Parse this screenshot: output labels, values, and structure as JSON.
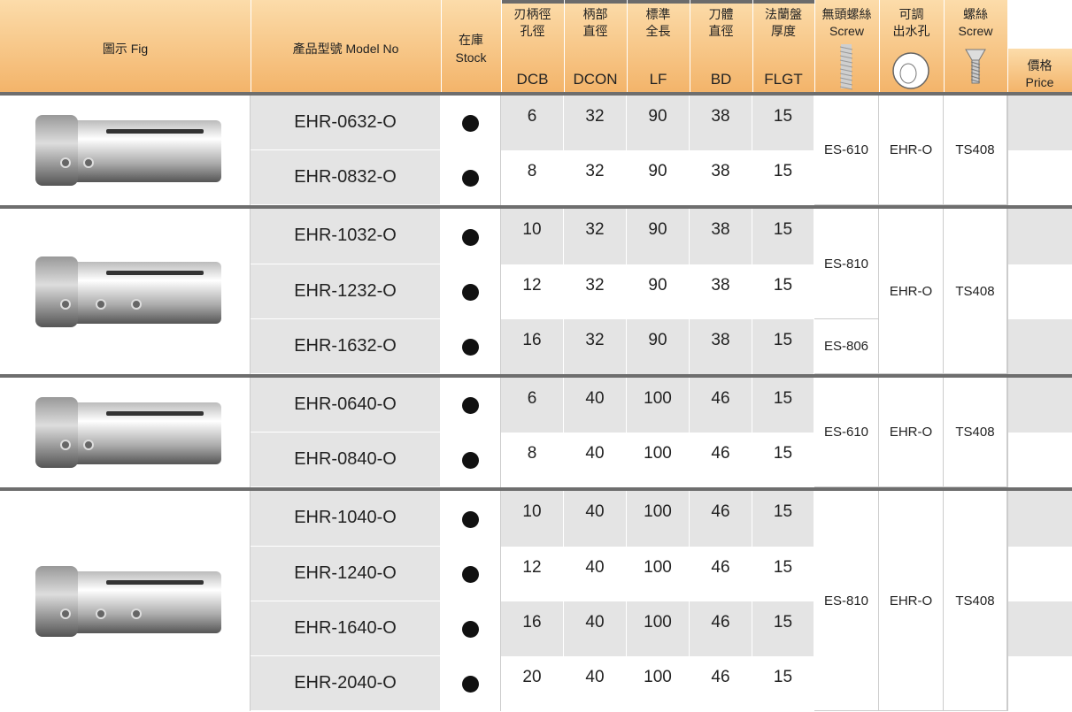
{
  "header": {
    "columns": [
      {
        "lines": [
          "圖示 Fig"
        ]
      },
      {
        "lines": [
          "產品型號 Model No"
        ]
      },
      {
        "lines": [
          "在庫",
          "Stock"
        ]
      },
      {
        "lines": [
          "刃柄徑",
          "孔徑"
        ],
        "code": "DCB"
      },
      {
        "lines": [
          "柄部",
          "直徑"
        ],
        "code": "DCON"
      },
      {
        "lines": [
          "標準",
          "全長"
        ],
        "code": "LF"
      },
      {
        "lines": [
          "刀體",
          "直徑"
        ],
        "code": "BD"
      },
      {
        "lines": [
          "法蘭盤",
          "厚度"
        ],
        "code": "FLGT"
      },
      {
        "lines": [
          "無頭螺絲",
          "Screw"
        ]
      },
      {
        "lines": [
          "可調",
          "出水孔"
        ]
      },
      {
        "lines": [
          "螺絲",
          "Screw"
        ]
      },
      {
        "lines": [
          "價格",
          "Price"
        ]
      }
    ]
  },
  "groups": [
    {
      "rows": [
        {
          "model": "EHR-0632-O",
          "dcb": 6,
          "dcon": 32,
          "lf": 90,
          "bd": 38,
          "flgt": 15,
          "set_screw": "ES-610",
          "nozzle": "EHR-O",
          "screw": "TS408"
        },
        {
          "model": "EHR-0832-O",
          "dcb": 8,
          "dcon": 32,
          "lf": 90,
          "bd": 38,
          "flgt": 15
        }
      ]
    },
    {
      "rows": [
        {
          "model": "EHR-1032-O",
          "dcb": 10,
          "dcon": 32,
          "lf": 90,
          "bd": 38,
          "flgt": 15,
          "set_screw": "ES-810",
          "nozzle": "EHR-O",
          "screw": "TS408"
        },
        {
          "model": "EHR-1232-O",
          "dcb": 12,
          "dcon": 32,
          "lf": 90,
          "bd": 38,
          "flgt": 15
        },
        {
          "model": "EHR-1632-O",
          "dcb": 16,
          "dcon": 32,
          "lf": 90,
          "bd": 38,
          "flgt": 15,
          "set_screw": "ES-806"
        }
      ]
    },
    {
      "rows": [
        {
          "model": "EHR-0640-O",
          "dcb": 6,
          "dcon": 40,
          "lf": 100,
          "bd": 46,
          "flgt": 15,
          "set_screw": "ES-610",
          "nozzle": "EHR-O",
          "screw": "TS408"
        },
        {
          "model": "EHR-0840-O",
          "dcb": 8,
          "dcon": 40,
          "lf": 100,
          "bd": 46,
          "flgt": 15
        }
      ]
    },
    {
      "rows": [
        {
          "model": "EHR-1040-O",
          "dcb": 10,
          "dcon": 40,
          "lf": 100,
          "bd": 46,
          "flgt": 15,
          "set_screw": "ES-810",
          "nozzle": "EHR-O",
          "screw": "TS408"
        },
        {
          "model": "EHR-1240-O",
          "dcb": 12,
          "dcon": 40,
          "lf": 100,
          "bd": 46,
          "flgt": 15
        },
        {
          "model": "EHR-1640-O",
          "dcb": 16,
          "dcon": 40,
          "lf": 100,
          "bd": 46,
          "flgt": 15
        },
        {
          "model": "EHR-2040-O",
          "dcb": 20,
          "dcon": 40,
          "lf": 100,
          "bd": 46,
          "flgt": 15
        }
      ]
    }
  ]
}
